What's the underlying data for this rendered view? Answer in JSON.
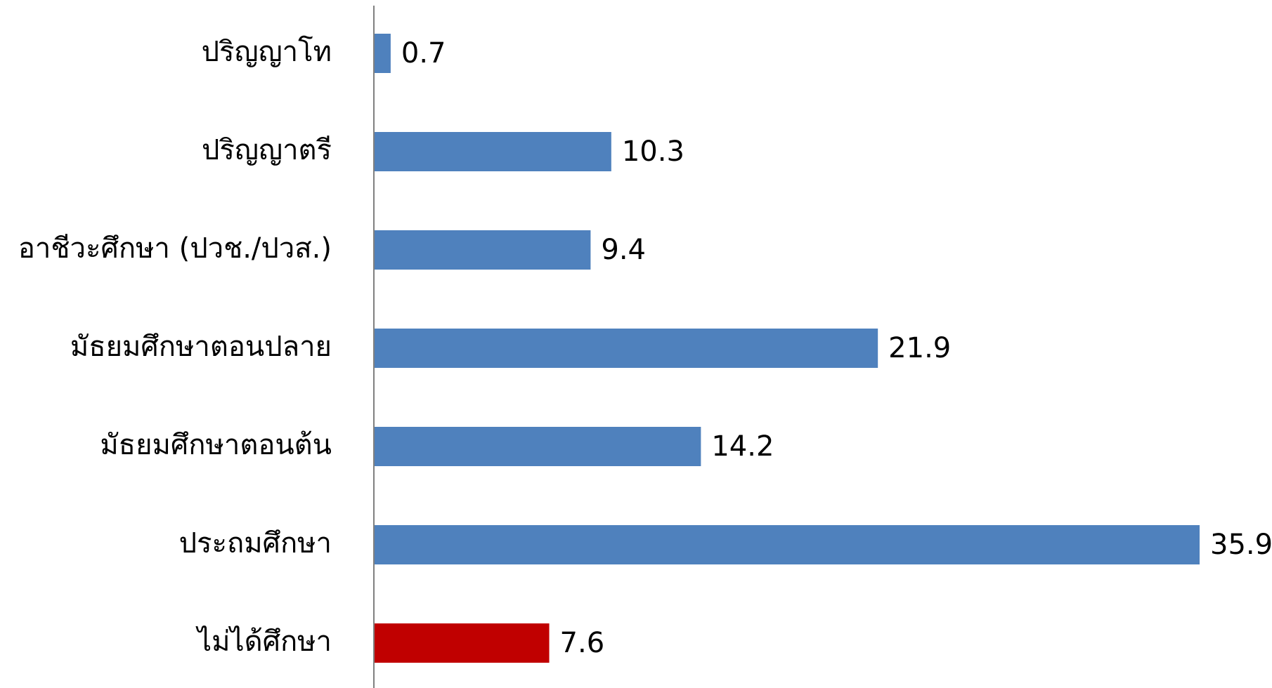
{
  "chart_data": {
    "type": "bar",
    "orientation": "horizontal",
    "categories": [
      "ปริญญาโท",
      "ปริญญาตรี",
      "อาชีวะศึกษา (ปวช./ปวส.)",
      "มัธยมศึกษาตอนปลาย",
      "มัธยมศึกษาตอนต้น",
      "ประถมศึกษา",
      "ไม่ได้ศึกษา"
    ],
    "values": [
      0.7,
      10.3,
      9.4,
      21.9,
      14.2,
      35.9,
      7.6
    ],
    "value_labels": [
      "0.7",
      "10.3",
      "9.4",
      "21.9",
      "14.2",
      "35.9",
      "7.6"
    ],
    "colors": [
      "#4F81BD",
      "#4F81BD",
      "#4F81BD",
      "#4F81BD",
      "#4F81BD",
      "#4F81BD",
      "#C00000"
    ],
    "xlim": [
      0,
      35.9
    ],
    "grid": false,
    "legend": "none"
  }
}
